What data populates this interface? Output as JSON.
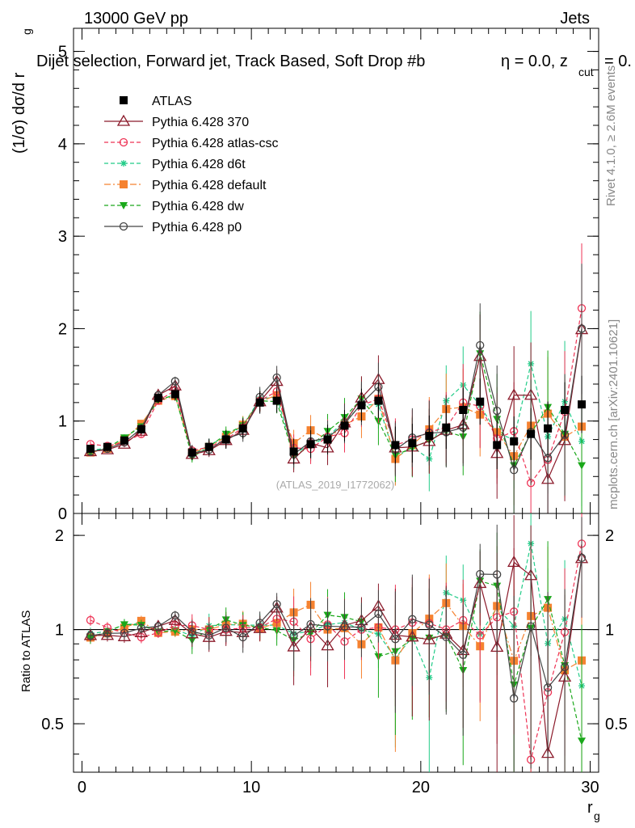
{
  "header": {
    "left": "13000 GeV pp",
    "right": "Jets",
    "subtitle": "Dijet selection, Forward jet, Track Based, Soft Drop #b",
    "subtitle_extra": "= 0.0, z",
    "subtitle_sub": "cut",
    "subtitle_tail": "= 0.",
    "rivet": "Rivet 4.1.0, ≥ 2.6M events",
    "mcplots": "mcplots.cern.ch [arXiv:2401.10621]",
    "analysis": "(ATLAS_2019_I1772062)"
  },
  "axes": {
    "ylabel_main": "(1/σ) dσ/d r",
    "ylabel_main_sub": "g",
    "ylabel_ratio": "Ratio to ATLAS",
    "xlabel": "r",
    "xlabel_sub": "g",
    "main_yticks": [
      "0",
      "1",
      "2",
      "3",
      "4",
      "5"
    ],
    "ratio_yticks": [
      "0.5",
      "1",
      "2"
    ],
    "xticks": [
      "0",
      "10",
      "20",
      "30"
    ]
  },
  "colors": {
    "atlas": "#000000",
    "p370": "#8b1a2a",
    "atlas_csc": "#ee3355",
    "d6t": "#22cc88",
    "default": "#f58230",
    "dw": "#1aa81a",
    "p0": "#444444"
  },
  "chart_data": {
    "type": "scatter",
    "title": "Dijet selection, Forward jet, Track Based, Soft Drop",
    "xlabel": "r_g",
    "ylabel": "(1/σ) dσ/d r_g",
    "xlim": [
      -0.5,
      30.5
    ],
    "ylim": [
      0,
      5.25
    ],
    "ratio_ylim": [
      0.35,
      2.35
    ],
    "x": [
      0.5,
      1.5,
      2.5,
      3.5,
      4.5,
      5.5,
      6.5,
      7.5,
      8.5,
      9.5,
      10.5,
      11.5,
      12.5,
      13.5,
      14.5,
      15.5,
      16.5,
      17.5,
      18.5,
      19.5,
      20.5,
      21.5,
      22.5,
      23.5,
      24.5,
      25.5,
      26.5,
      27.5,
      28.5,
      29.5
    ],
    "series": [
      {
        "name": "ATLAS",
        "key": "atlas",
        "style": "data",
        "values": [
          0.7,
          0.72,
          0.79,
          0.91,
          1.25,
          1.29,
          0.66,
          0.72,
          0.8,
          0.92,
          1.2,
          1.22,
          0.67,
          0.75,
          0.8,
          0.95,
          1.17,
          1.22,
          0.74,
          0.76,
          0.84,
          0.93,
          1.12,
          1.21,
          0.74,
          0.78,
          0.86,
          0.92,
          1.12,
          1.18
        ]
      },
      {
        "name": "Pythia 6.428 370",
        "key": "p370",
        "style": "solid-triangle-open",
        "values": [
          0.67,
          0.69,
          0.75,
          0.89,
          1.28,
          1.38,
          0.64,
          0.68,
          0.79,
          0.9,
          1.21,
          1.43,
          0.59,
          0.76,
          0.71,
          0.98,
          1.25,
          1.45,
          0.71,
          0.72,
          0.78,
          0.9,
          0.96,
          1.7,
          0.65,
          1.28,
          1.28,
          0.37,
          0.79,
          1.99
        ]
      },
      {
        "name": "Pythia 6.428 atlas-csc",
        "key": "atlas_csc",
        "style": "dashed-circle-open",
        "values": [
          0.75,
          0.73,
          0.77,
          0.86,
          1.22,
          1.33,
          0.68,
          0.72,
          0.8,
          0.93,
          1.22,
          1.32,
          0.71,
          0.7,
          0.83,
          0.87,
          1.17,
          1.24,
          0.74,
          0.8,
          0.88,
          0.93,
          1.2,
          1.16,
          0.81,
          0.89,
          0.33,
          0.58,
          1.1,
          2.22
        ]
      },
      {
        "name": "Pythia 6.428 d6t",
        "key": "d6t",
        "style": "dashed-star",
        "values": [
          0.68,
          0.71,
          0.82,
          0.95,
          1.22,
          1.29,
          0.63,
          0.74,
          0.83,
          0.95,
          1.24,
          1.26,
          0.65,
          0.74,
          0.83,
          1.0,
          1.17,
          1.18,
          0.6,
          0.72,
          0.59,
          1.22,
          1.39,
          1.17,
          0.87,
          0.8,
          1.62,
          0.83,
          1.21,
          0.78
        ]
      },
      {
        "name": "Pythia 6.428 default",
        "key": "default",
        "style": "dashdot-square",
        "values": [
          0.66,
          0.7,
          0.8,
          0.97,
          1.22,
          1.27,
          0.66,
          0.72,
          0.83,
          0.96,
          1.21,
          1.28,
          0.76,
          0.9,
          0.8,
          0.96,
          1.05,
          1.24,
          0.59,
          0.74,
          0.91,
          1.13,
          1.15,
          1.07,
          0.88,
          0.62,
          0.95,
          1.08,
          0.83,
          0.94
        ]
      },
      {
        "name": "Pythia 6.428 dw",
        "key": "dw",
        "style": "dashed-triangle-down",
        "values": [
          0.66,
          0.71,
          0.82,
          0.94,
          1.23,
          1.28,
          0.61,
          0.72,
          0.86,
          0.95,
          1.22,
          1.21,
          0.62,
          0.73,
          0.89,
          1.04,
          1.24,
          1.0,
          0.63,
          0.71,
          0.79,
          0.89,
          0.83,
          1.73,
          1.02,
          0.52,
          0.87,
          1.15,
          0.86,
          0.52
        ]
      },
      {
        "name": "Pythia 6.428 p0",
        "key": "p0",
        "style": "solid-circle-open",
        "values": [
          0.67,
          0.7,
          0.77,
          0.92,
          1.28,
          1.43,
          0.65,
          0.69,
          0.81,
          0.87,
          1.26,
          1.47,
          0.64,
          0.78,
          0.82,
          0.97,
          1.19,
          1.37,
          0.69,
          0.82,
          0.87,
          0.88,
          0.93,
          1.82,
          1.11,
          0.47,
          0.88,
          0.6,
          0.85,
          2.0
        ]
      }
    ]
  }
}
